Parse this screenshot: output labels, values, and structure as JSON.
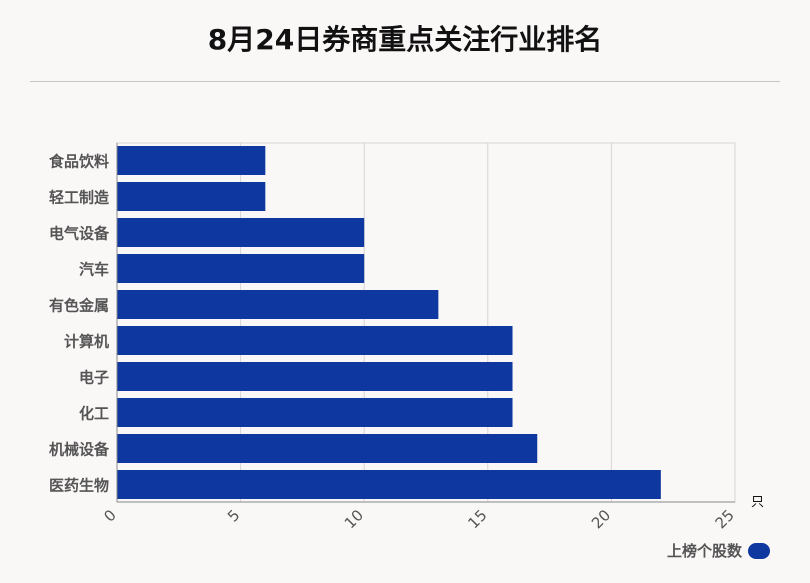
{
  "title": "8月24日券商重点关注行业排名",
  "chart_data": {
    "type": "bar",
    "orientation": "horizontal",
    "categories": [
      "食品饮料",
      "轻工制造",
      "电气设备",
      "汽车",
      "有色金属",
      "计算机",
      "电子",
      "化工",
      "机械设备",
      "医药生物"
    ],
    "series": [
      {
        "name": "上榜个股数",
        "values": [
          6,
          6,
          10,
          10,
          13,
          16,
          16,
          16,
          17,
          22
        ]
      }
    ],
    "xlim": [
      0,
      25
    ],
    "xticks": [
      0,
      5,
      10,
      15,
      20,
      25
    ],
    "xunit": "只",
    "grid": true,
    "legend_position": "bottom-right",
    "bar_color": "#0f37a0"
  }
}
